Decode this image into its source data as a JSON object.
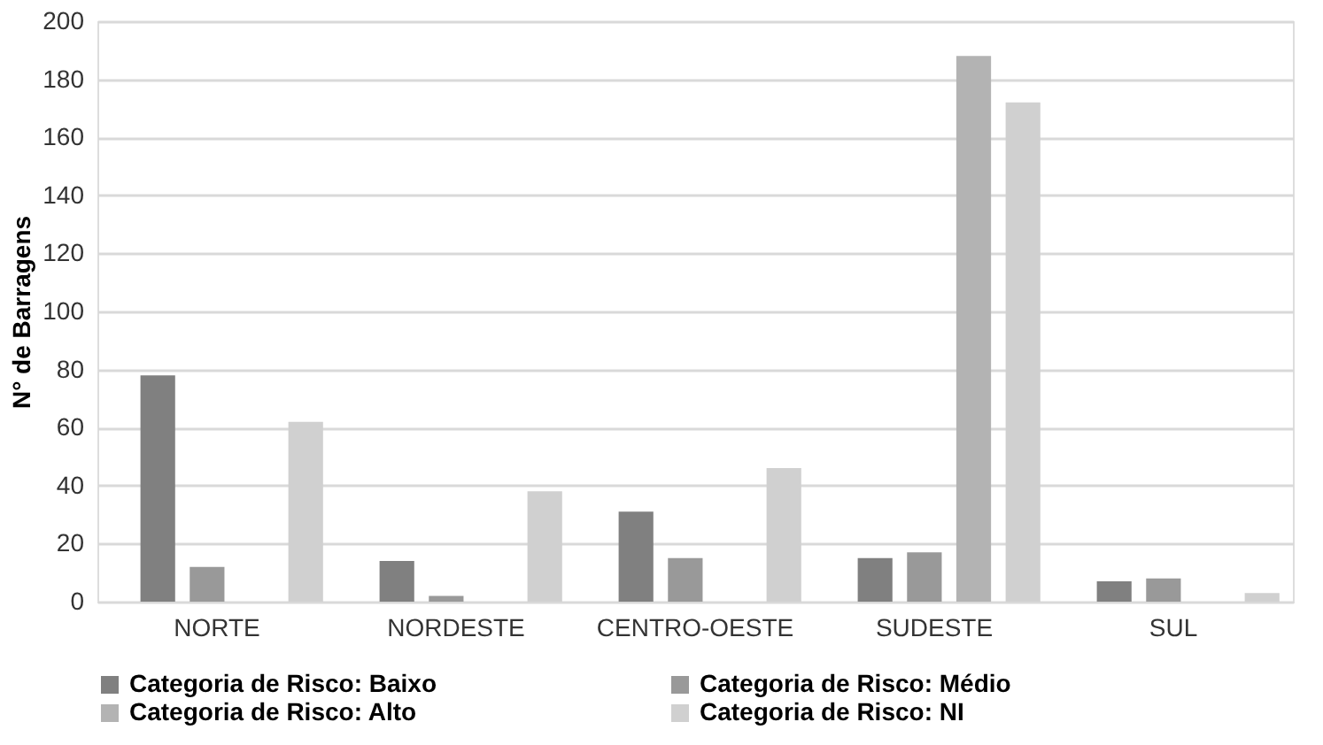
{
  "chart_data": {
    "type": "bar",
    "ylabel": "N° de Barragens",
    "categories": [
      "NORTE",
      "NORDESTE",
      "CENTRO-OESTE",
      "SUDESTE",
      "SUL"
    ],
    "series": [
      {
        "name": "Categoria de Risco: Baixo",
        "color": "#808080",
        "values": [
          78,
          14,
          31,
          15,
          7
        ]
      },
      {
        "name": "Categoria de Risco: Médio",
        "color": "#999999",
        "values": [
          12,
          2,
          15,
          17,
          8
        ]
      },
      {
        "name": "Categoria de Risco: Alto",
        "color": "#b3b3b3",
        "values": [
          0,
          0,
          0,
          188,
          0
        ]
      },
      {
        "name": "Categoria de Risco: NI",
        "color": "#d0d0d0",
        "values": [
          62,
          38,
          46,
          172,
          3
        ]
      }
    ],
    "ylim": [
      0,
      200
    ],
    "yticks": [
      0,
      20,
      40,
      60,
      80,
      100,
      120,
      140,
      160,
      180,
      200
    ],
    "grid": "y",
    "legend": "bottom"
  }
}
